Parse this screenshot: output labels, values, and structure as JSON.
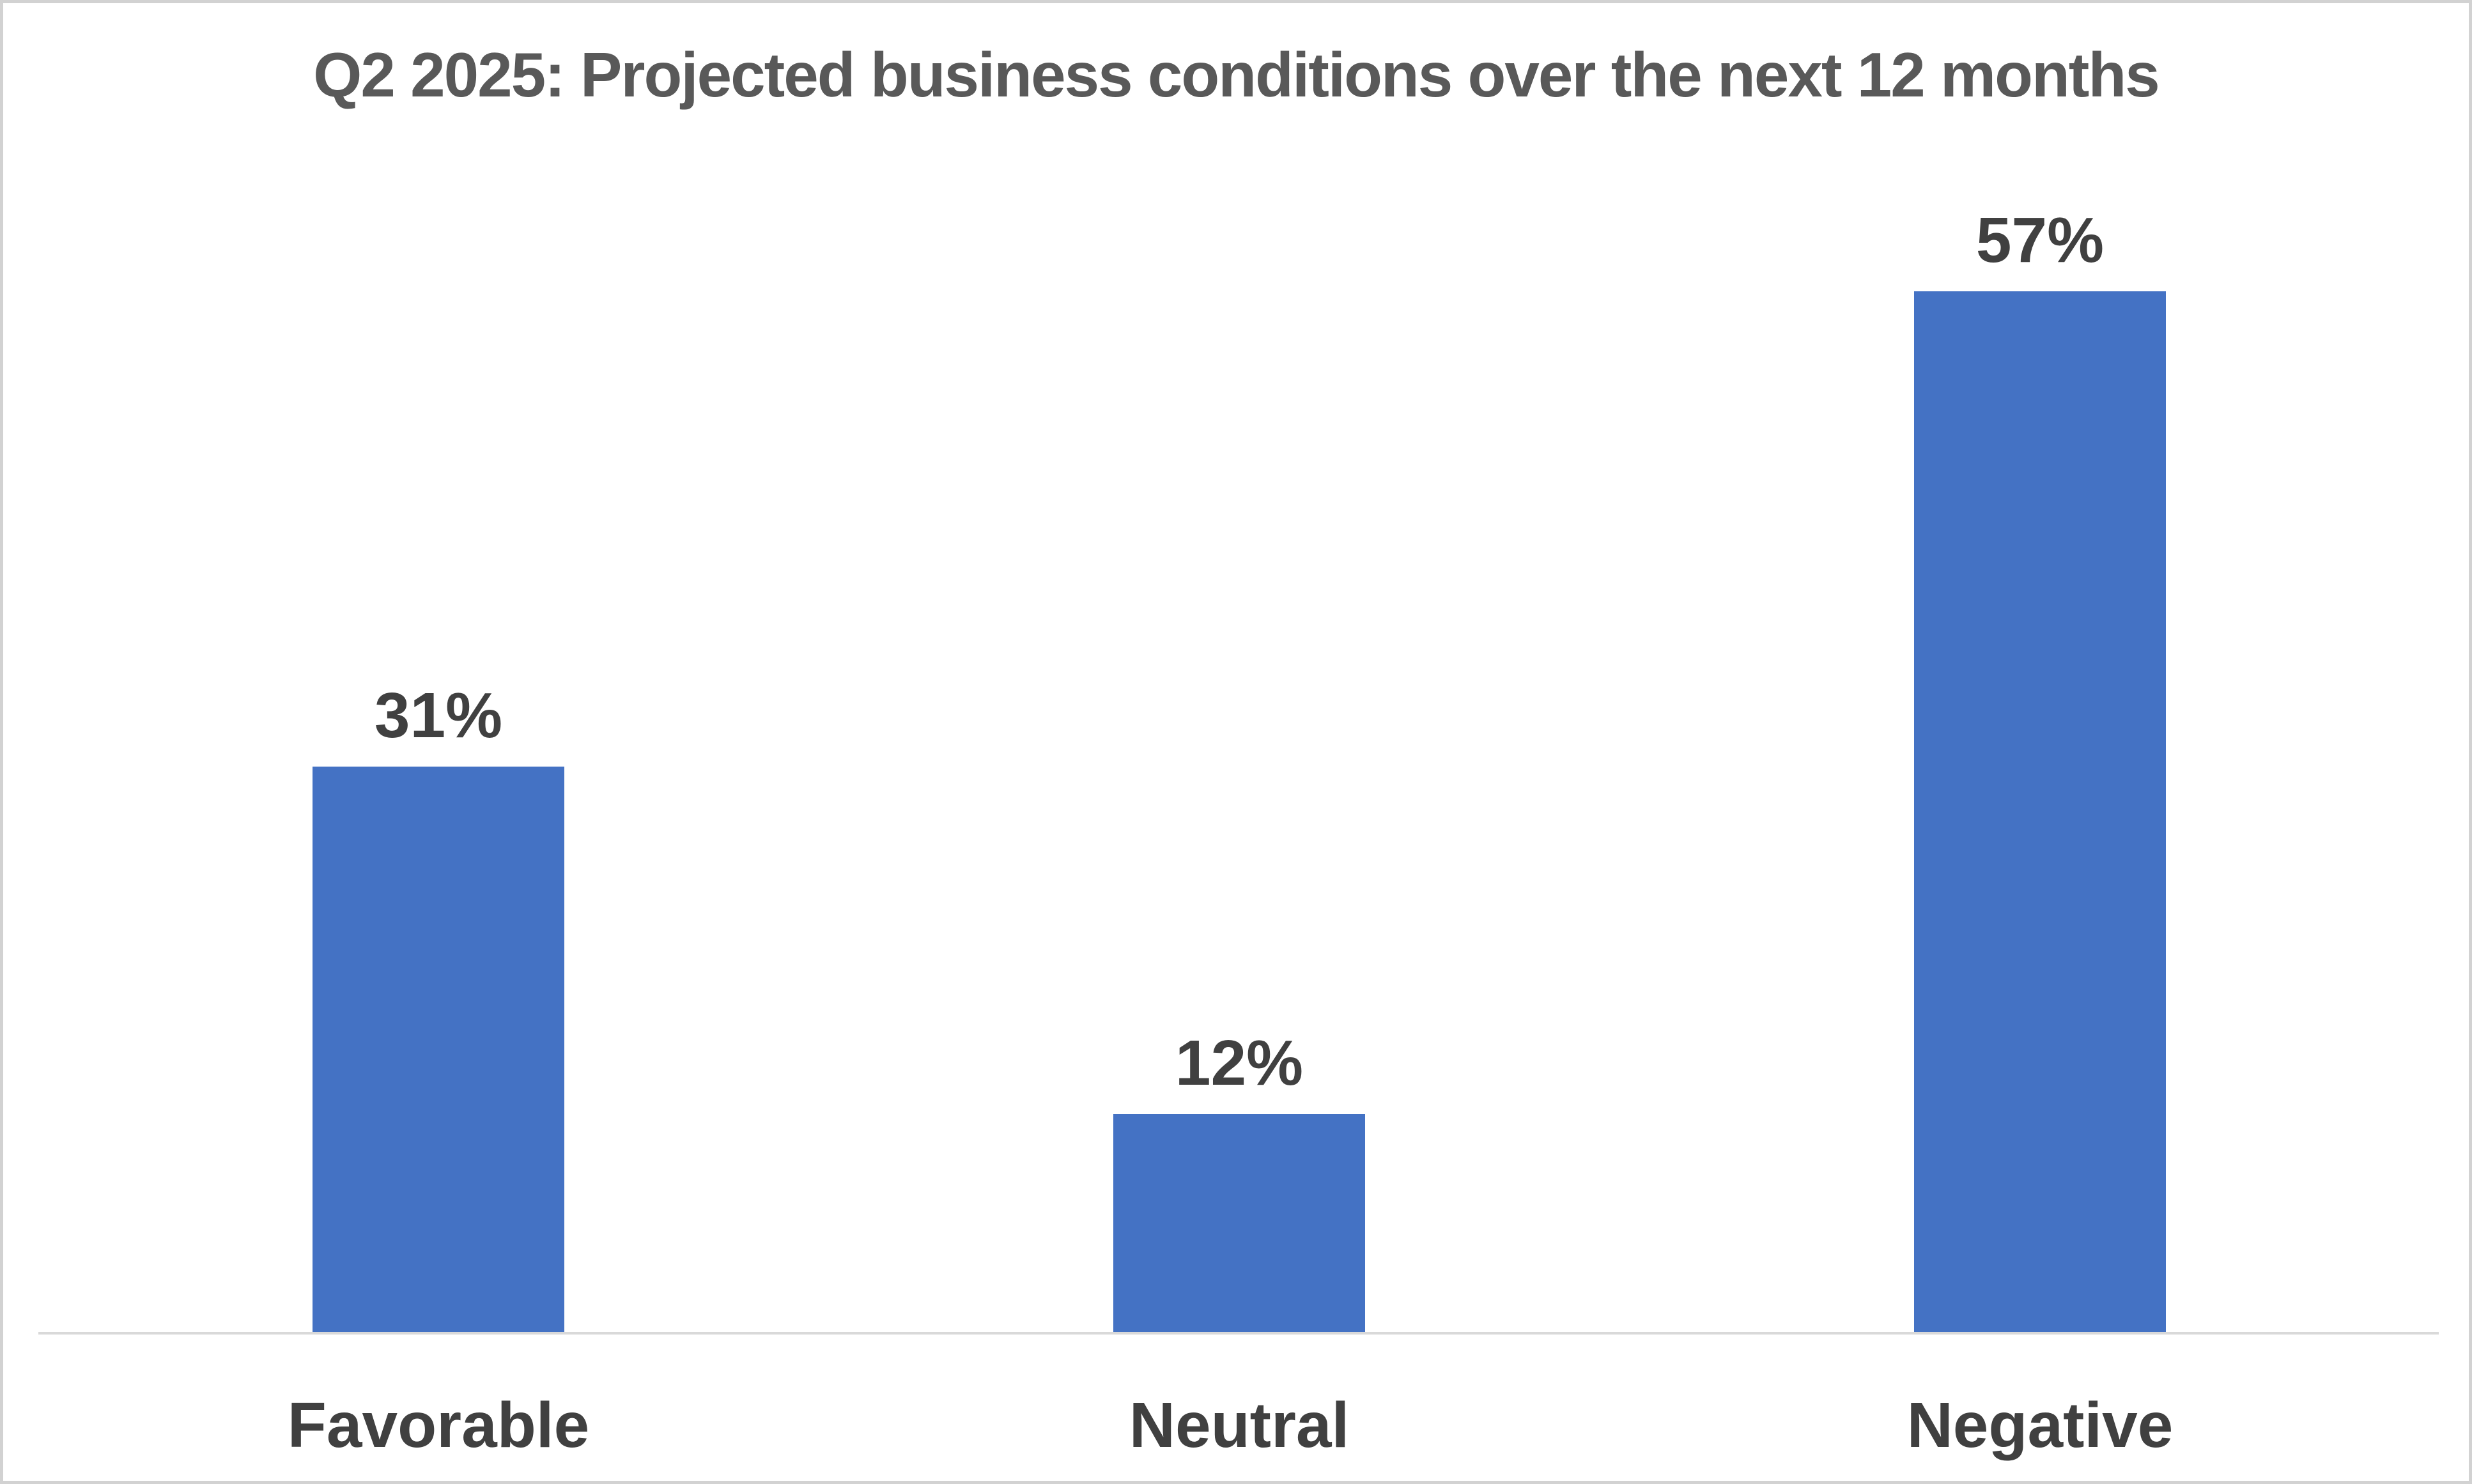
{
  "chart_data": {
    "type": "bar",
    "title": "Q2 2025: Projected business conditions over the next 12 months",
    "categories": [
      "Favorable",
      "Neutral",
      "Negative"
    ],
    "values": [
      31,
      12,
      57
    ],
    "data_labels": [
      "31%",
      "12%",
      "57%"
    ],
    "value_unit": "%",
    "bar_color": "#4472C4",
    "axis_line_color": "#D9D9D9",
    "title_color": "#595959",
    "data_label_color": "#404040",
    "category_label_color": "#404040",
    "layout_hints": {
      "y_axis_visible": false,
      "x_axis_line_visible": true,
      "gridlines": false,
      "legend": false,
      "data_labels_position": "outside-end"
    }
  }
}
